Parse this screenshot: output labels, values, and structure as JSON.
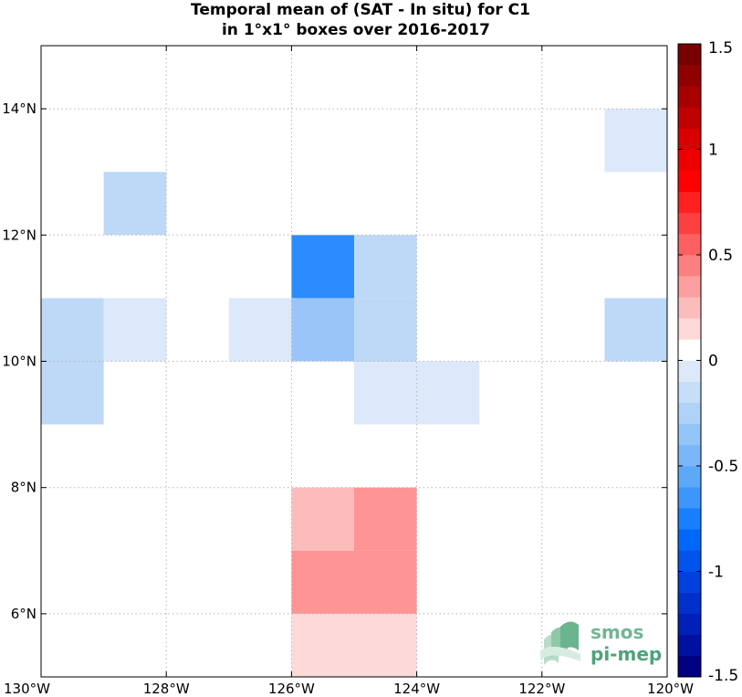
{
  "chart_data": {
    "type": "heatmap",
    "title": [
      "Temporal mean of (SAT - In situ) for C1",
      "in 1°x1° boxes over 2016-2017"
    ],
    "xlim": [
      -130,
      -120
    ],
    "ylim": [
      5,
      15
    ],
    "grid": true,
    "x_ticks": [
      {
        "value": -130,
        "label": "130°W"
      },
      {
        "value": -128,
        "label": "128°W"
      },
      {
        "value": -126,
        "label": "126°W"
      },
      {
        "value": -124,
        "label": "124°W"
      },
      {
        "value": -122,
        "label": "122°W"
      },
      {
        "value": -120,
        "label": "120°W"
      }
    ],
    "y_ticks": [
      {
        "value": 6,
        "label": "6°N"
      },
      {
        "value": 8,
        "label": "8°N"
      },
      {
        "value": 10,
        "label": "10°N"
      },
      {
        "value": 12,
        "label": "12°N"
      },
      {
        "value": 14,
        "label": "14°N"
      }
    ],
    "cells": [
      {
        "lon": -129,
        "lat": 12,
        "value": -0.3,
        "color": "#bdd9f7"
      },
      {
        "lon": -121,
        "lat": 13,
        "value": -0.15,
        "color": "#dbe9fa"
      },
      {
        "lon": -126,
        "lat": 11,
        "value": -0.9,
        "color": "#2b8cff"
      },
      {
        "lon": -125,
        "lat": 11,
        "value": -0.3,
        "color": "#bdd9f7"
      },
      {
        "lon": -130,
        "lat": 10,
        "value": -0.3,
        "color": "#bdd9f7"
      },
      {
        "lon": -129,
        "lat": 10,
        "value": -0.15,
        "color": "#dbe9fa"
      },
      {
        "lon": -127,
        "lat": 10,
        "value": -0.15,
        "color": "#dbe9fa"
      },
      {
        "lon": -126,
        "lat": 10,
        "value": -0.4,
        "color": "#99c5f9"
      },
      {
        "lon": -125,
        "lat": 10,
        "value": -0.3,
        "color": "#bdd9f7"
      },
      {
        "lon": -121,
        "lat": 10,
        "value": -0.3,
        "color": "#bdd9f7"
      },
      {
        "lon": -130,
        "lat": 9,
        "value": -0.3,
        "color": "#bdd9f7"
      },
      {
        "lon": -125,
        "lat": 9,
        "value": -0.15,
        "color": "#dbe9fa"
      },
      {
        "lon": -124,
        "lat": 9,
        "value": -0.15,
        "color": "#dbe9fa"
      },
      {
        "lon": -126,
        "lat": 7,
        "value": 0.3,
        "color": "#fdbcbc"
      },
      {
        "lon": -125,
        "lat": 7,
        "value": 0.45,
        "color": "#fe9494"
      },
      {
        "lon": -126,
        "lat": 6,
        "value": 0.45,
        "color": "#fe9494"
      },
      {
        "lon": -125,
        "lat": 6,
        "value": 0.45,
        "color": "#fe9494"
      },
      {
        "lon": -126,
        "lat": 5,
        "value": 0.15,
        "color": "#fdd9d9"
      },
      {
        "lon": -125,
        "lat": 5,
        "value": 0.15,
        "color": "#fdd9d9"
      }
    ],
    "colorbar": {
      "min": -1.5,
      "max": 1.5,
      "levels": 30,
      "colors": [
        "#000080",
        "#0010a0",
        "#0020b8",
        "#0030cc",
        "#0040dc",
        "#0054ec",
        "#0068f8",
        "#1880ff",
        "#3c96fb",
        "#5ea8f8",
        "#7ab7f8",
        "#94c5f8",
        "#aed2f8",
        "#c6def8",
        "#dde9f9",
        "#ffffff",
        "#fdd9d9",
        "#fdbcbc",
        "#fc9e9e",
        "#fc8080",
        "#fd6060",
        "#fe4040",
        "#ff2020",
        "#ff0000",
        "#ec0000",
        "#d80000",
        "#c00000",
        "#a80000",
        "#900000",
        "#780000"
      ],
      "tick_values": [
        -1.5,
        -1,
        -0.5,
        0,
        0.5,
        1,
        1.5
      ],
      "tick_labels": [
        "-1.5",
        "-1",
        "-0.5",
        "0",
        "0.5",
        "1",
        "1.5"
      ]
    }
  },
  "logo": {
    "line1": "smos",
    "line2": "pi-mep"
  }
}
